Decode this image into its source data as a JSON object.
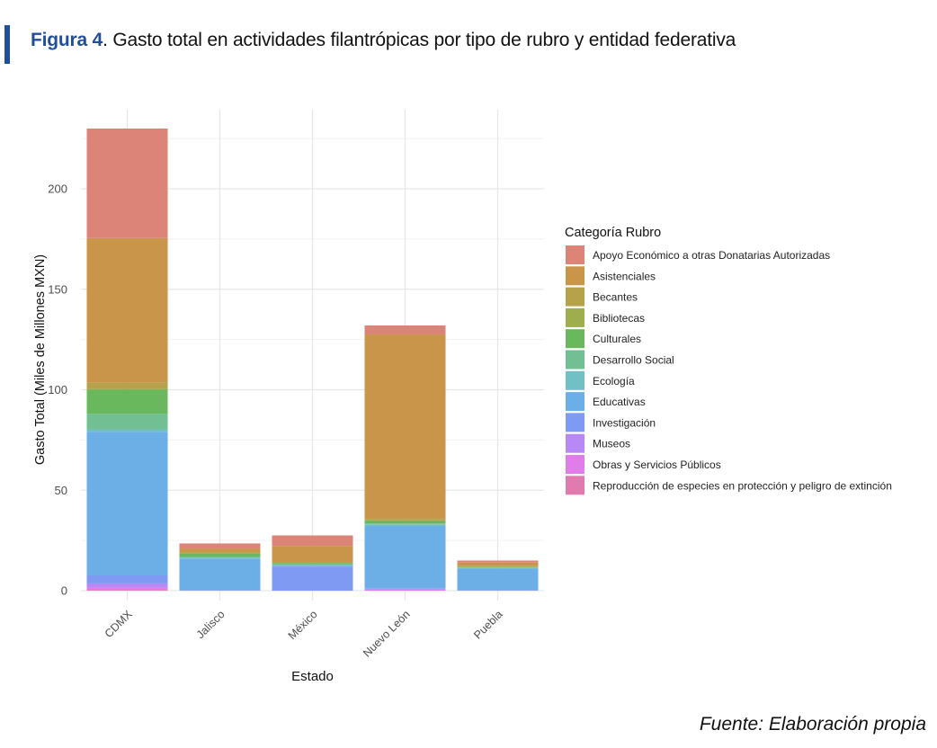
{
  "figure": {
    "label": "Figura 4",
    "title": ". Gasto total en actividades filantrópicas por tipo de rubro y entidad federativa",
    "source": "Fuente: Elaboración propia",
    "accent_color": "#1f4f9c"
  },
  "chart_data": {
    "type": "bar",
    "stacked": true,
    "xlabel": "Estado",
    "ylabel": "Gasto Total (Miles de Millones MXN)",
    "ylim": [
      0,
      240
    ],
    "yticks": [
      0,
      50,
      100,
      150,
      200
    ],
    "grid": true,
    "legend_title": "Categoría Rubro",
    "legend_position": "right",
    "categories": [
      "CDMX",
      "Jalisco",
      "México",
      "Nuevo León",
      "Puebla"
    ],
    "series": [
      {
        "name": "Reproducción de especies en protección y peligro de extinción",
        "color": "#e07bb0",
        "values": [
          0.4,
          0,
          0,
          0,
          0
        ]
      },
      {
        "name": "Obras y Servicios Públicos",
        "color": "#e17de8",
        "values": [
          1.2,
          0,
          0,
          0.5,
          0
        ]
      },
      {
        "name": "Museos",
        "color": "#b889f4",
        "values": [
          2,
          0,
          0,
          0.5,
          0
        ]
      },
      {
        "name": "Investigación",
        "color": "#7f9af3",
        "values": [
          4,
          0.3,
          12,
          0.2,
          0.3
        ]
      },
      {
        "name": "Educativas",
        "color": "#6caee6",
        "values": [
          71.5,
          15.7,
          0.5,
          31,
          10.7
        ]
      },
      {
        "name": "Ecología",
        "color": "#72bfc6",
        "values": [
          1.2,
          0.5,
          0.4,
          0.8,
          0.3
        ]
      },
      {
        "name": "Desarrollo Social",
        "color": "#72bf94",
        "values": [
          7.7,
          0.5,
          0.3,
          0.5,
          0.3
        ]
      },
      {
        "name": "Culturales",
        "color": "#6ab85d",
        "values": [
          12,
          1.5,
          0.6,
          1.5,
          0.3
        ]
      },
      {
        "name": "Bibliotecas",
        "color": "#9ead4e",
        "values": [
          0.5,
          0,
          0,
          0,
          0
        ]
      },
      {
        "name": "Becantes",
        "color": "#b7a24c",
        "values": [
          3,
          0.5,
          0.5,
          1,
          0.5
        ]
      },
      {
        "name": "Asistenciales",
        "color": "#c9954a",
        "values": [
          72,
          2,
          8,
          91.5,
          1.6
        ]
      },
      {
        "name": "Apoyo Económico a otras Donatarias Autorizadas",
        "color": "#dc8478",
        "values": [
          54.5,
          2.5,
          5.2,
          4.5,
          1
        ]
      }
    ]
  }
}
